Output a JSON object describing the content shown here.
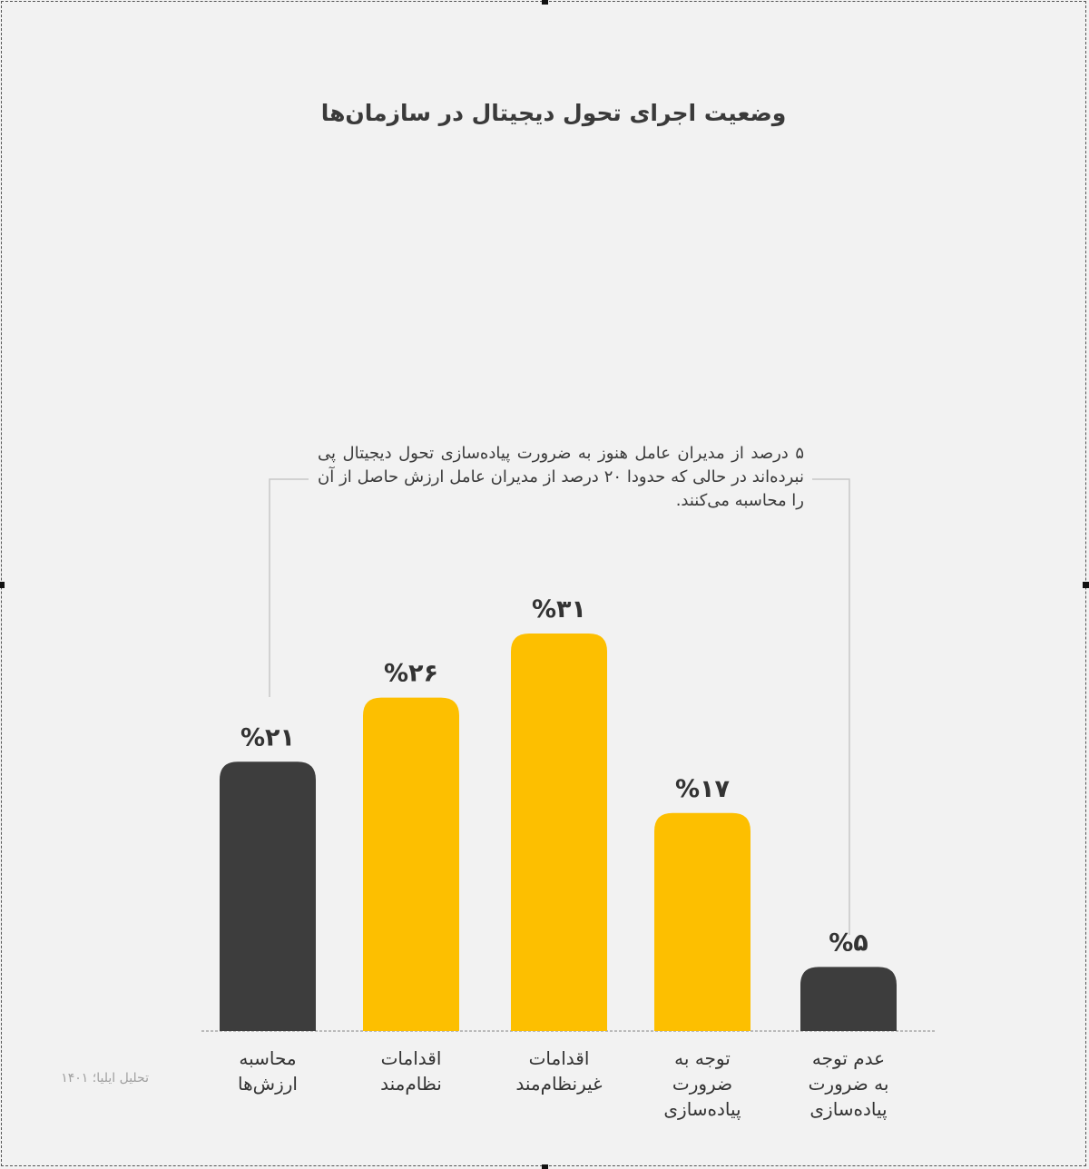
{
  "chart_data": {
    "type": "bar",
    "title": "وضعیت اجرای تحول دیجیتال در سازمان‌ها",
    "categories": [
      "محاسبه ارزش‌ها",
      "اقدامات نظام‌مند",
      "اقدامات غیرنظام‌مند",
      "توجه به ضرورت پیاده‌سازی",
      "عدم توجه به ضرورت پیاده‌سازی"
    ],
    "category_lines": [
      [
        "محاسبه",
        "ارزش‌ها"
      ],
      [
        "اقدامات",
        "نظام‌مند"
      ],
      [
        "اقدامات",
        "غیرنظام‌مند"
      ],
      [
        "توجه به",
        "ضرورت",
        "پیاده‌سازی"
      ],
      [
        "عدم توجه",
        "به ضرورت",
        "پیاده‌سازی"
      ]
    ],
    "values": [
      21,
      26,
      31,
      17,
      5
    ],
    "value_labels": [
      "%۲۱",
      "%۲۶",
      "%۳۱",
      "%۱۷",
      "%۵"
    ],
    "ylim": [
      0,
      31
    ],
    "colors": [
      "#3d3d3d",
      "#fdbf00",
      "#fdbf00",
      "#fdbf00",
      "#3d3d3d"
    ],
    "annotation": "۵ درصد از مدیران عامل هنوز به ضرورت پیاده‌سازی تحول دیجیتال پی نبرده‌اند در حالی که حدودا ۲۰ درصد از مدیران عامل ارزش حاصل از آن را محاسبه می‌کنند.",
    "grid": false,
    "legend": "none"
  },
  "source": "تحلیل ایلیا؛ ۱۴۰۱"
}
